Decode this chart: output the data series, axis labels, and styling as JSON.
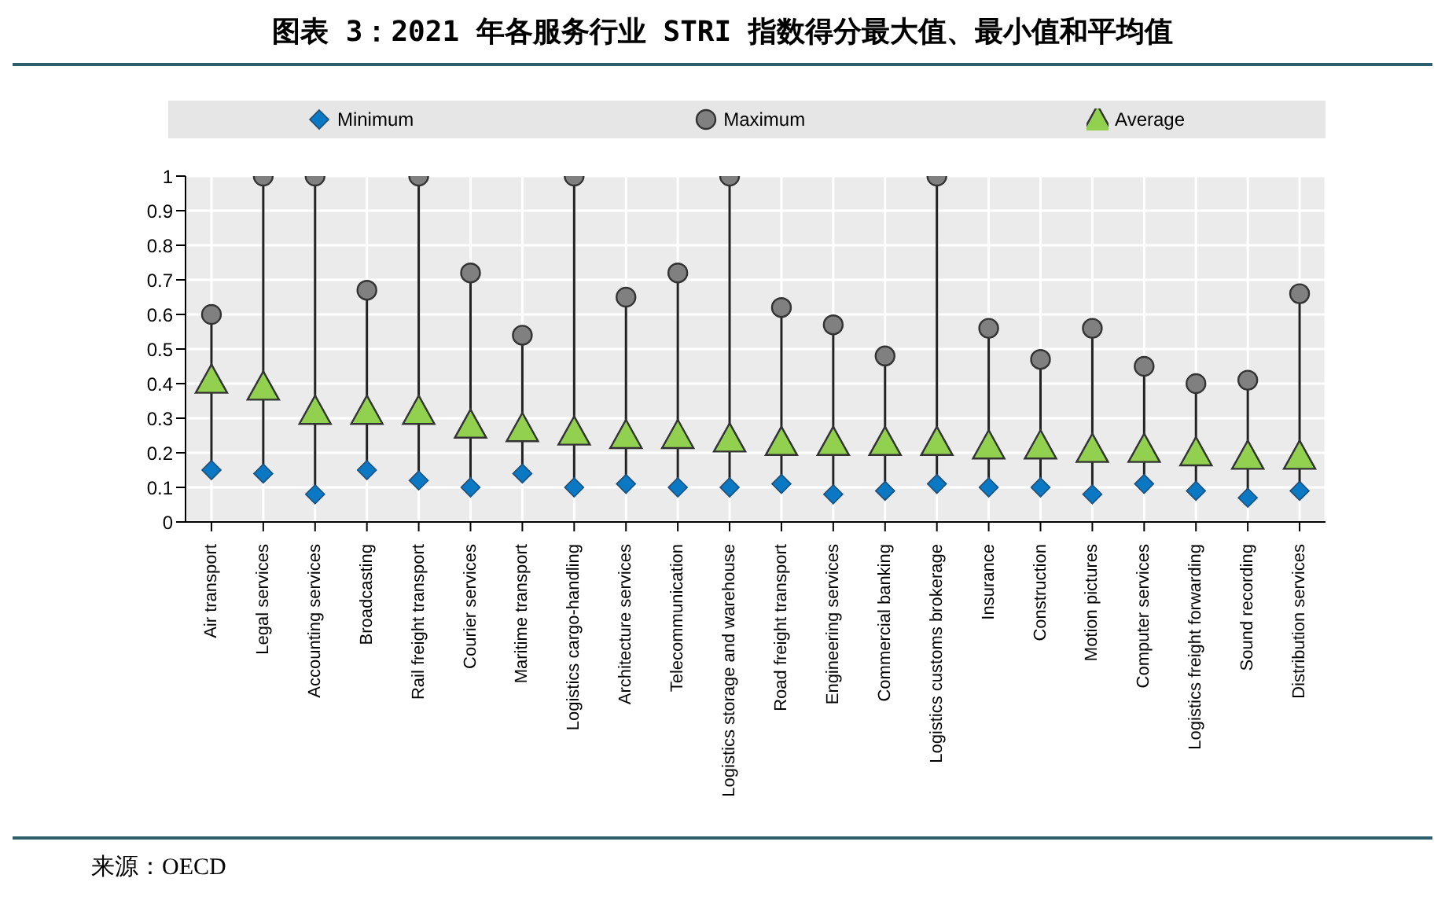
{
  "chart_data": {
    "type": "scatter",
    "title": "图表 3：2021 年各服务行业 STRI 指数得分最大值、最小值和平均值",
    "categories": [
      "Air transport",
      "Legal services",
      "Accounting services",
      "Broadcasting",
      "Rail freight transport",
      "Courier services",
      "Maritime transport",
      "Logistics cargo-handling",
      "Architecture services",
      "Telecommunication",
      "Logistics storage and warehouse",
      "Road freight transport",
      "Engineering services",
      "Commercial banking",
      "Logistics customs brokerage",
      "Insurance",
      "Construction",
      "Motion pictures",
      "Computer services",
      "Logistics freight forwarding",
      "Sound recording",
      "Distribution services"
    ],
    "series": [
      {
        "name": "Minimum",
        "color": "#0a78c2",
        "marker": "diamond",
        "values": [
          0.15,
          0.14,
          0.08,
          0.15,
          0.12,
          0.1,
          0.14,
          0.1,
          0.11,
          0.1,
          0.1,
          0.11,
          0.08,
          0.09,
          0.11,
          0.1,
          0.1,
          0.08,
          0.11,
          0.09,
          0.07,
          0.09
        ]
      },
      {
        "name": "Maximum",
        "color": "#808080",
        "marker": "circle",
        "values": [
          0.6,
          1,
          1,
          0.67,
          1,
          0.72,
          0.54,
          1,
          0.65,
          0.72,
          1,
          0.62,
          0.57,
          0.48,
          1,
          0.56,
          0.47,
          0.56,
          0.45,
          0.4,
          0.41,
          0.66
        ]
      },
      {
        "name": "Average",
        "color": "#92d050",
        "marker": "triangle",
        "values": [
          0.41,
          0.39,
          0.32,
          0.32,
          0.32,
          0.28,
          0.27,
          0.26,
          0.25,
          0.25,
          0.24,
          0.23,
          0.23,
          0.23,
          0.23,
          0.22,
          0.22,
          0.21,
          0.21,
          0.2,
          0.19,
          0.19
        ]
      }
    ],
    "ylim": [
      0,
      1
    ],
    "yticks": [
      0,
      0.1,
      0.2,
      0.3,
      0.4,
      0.5,
      0.6,
      0.7,
      0.8,
      0.9,
      1
    ],
    "grid": true,
    "legend": "top",
    "annotations": [
      "来源：OECD"
    ]
  }
}
